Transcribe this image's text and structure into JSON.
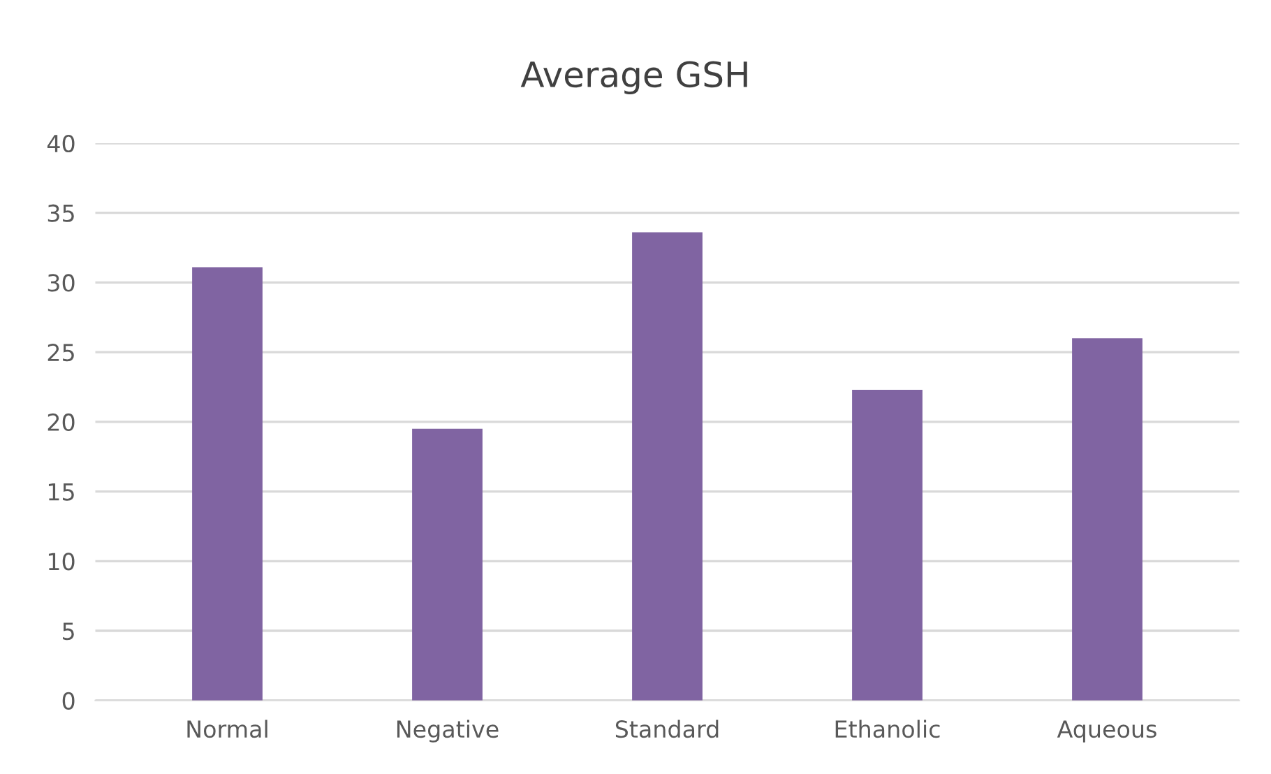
{
  "chart_data": {
    "type": "bar",
    "title": "Average GSH",
    "categories": [
      "Normal",
      "Negative",
      "Standard",
      "Ethanolic",
      "Aqueous"
    ],
    "values": [
      31.1,
      19.5,
      33.6,
      22.3,
      26.0
    ],
    "color": "#8064a2",
    "ylim": [
      0,
      40
    ],
    "yticks": [
      0,
      5,
      10,
      15,
      20,
      25,
      30,
      35,
      40
    ],
    "grid": "y"
  }
}
